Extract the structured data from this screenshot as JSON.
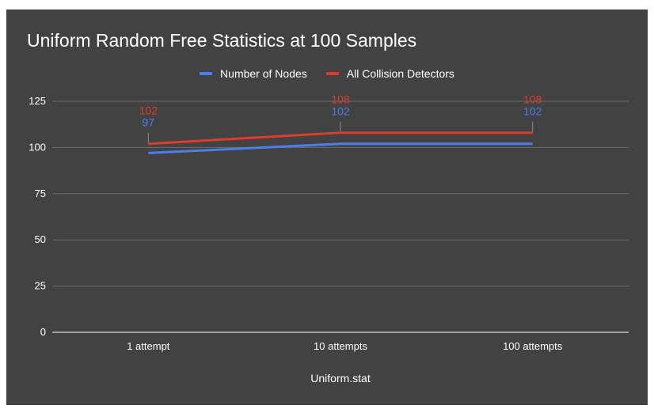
{
  "chart_data": {
    "type": "line",
    "title": "Uniform Random Free Statistics at 100 Samples",
    "xlabel": "Uniform.stat",
    "ylabel": "",
    "categories": [
      "1 attempt",
      "10 attempts",
      "100 attempts"
    ],
    "yticks": [
      "0",
      "25",
      "50",
      "75",
      "100",
      "125"
    ],
    "ylim": [
      0,
      125
    ],
    "grid": true,
    "legend_position": "top",
    "series": [
      {
        "name": "Number of Nodes",
        "values": [
          97,
          102,
          102
        ],
        "color": "#4a7fe8"
      },
      {
        "name": "All Collision Detectors",
        "values": [
          102,
          108,
          108
        ],
        "color": "#dc3b2e"
      }
    ]
  },
  "colors": {
    "background": "#424242",
    "text": "#ffffff",
    "grid": "#6b6b6b"
  }
}
